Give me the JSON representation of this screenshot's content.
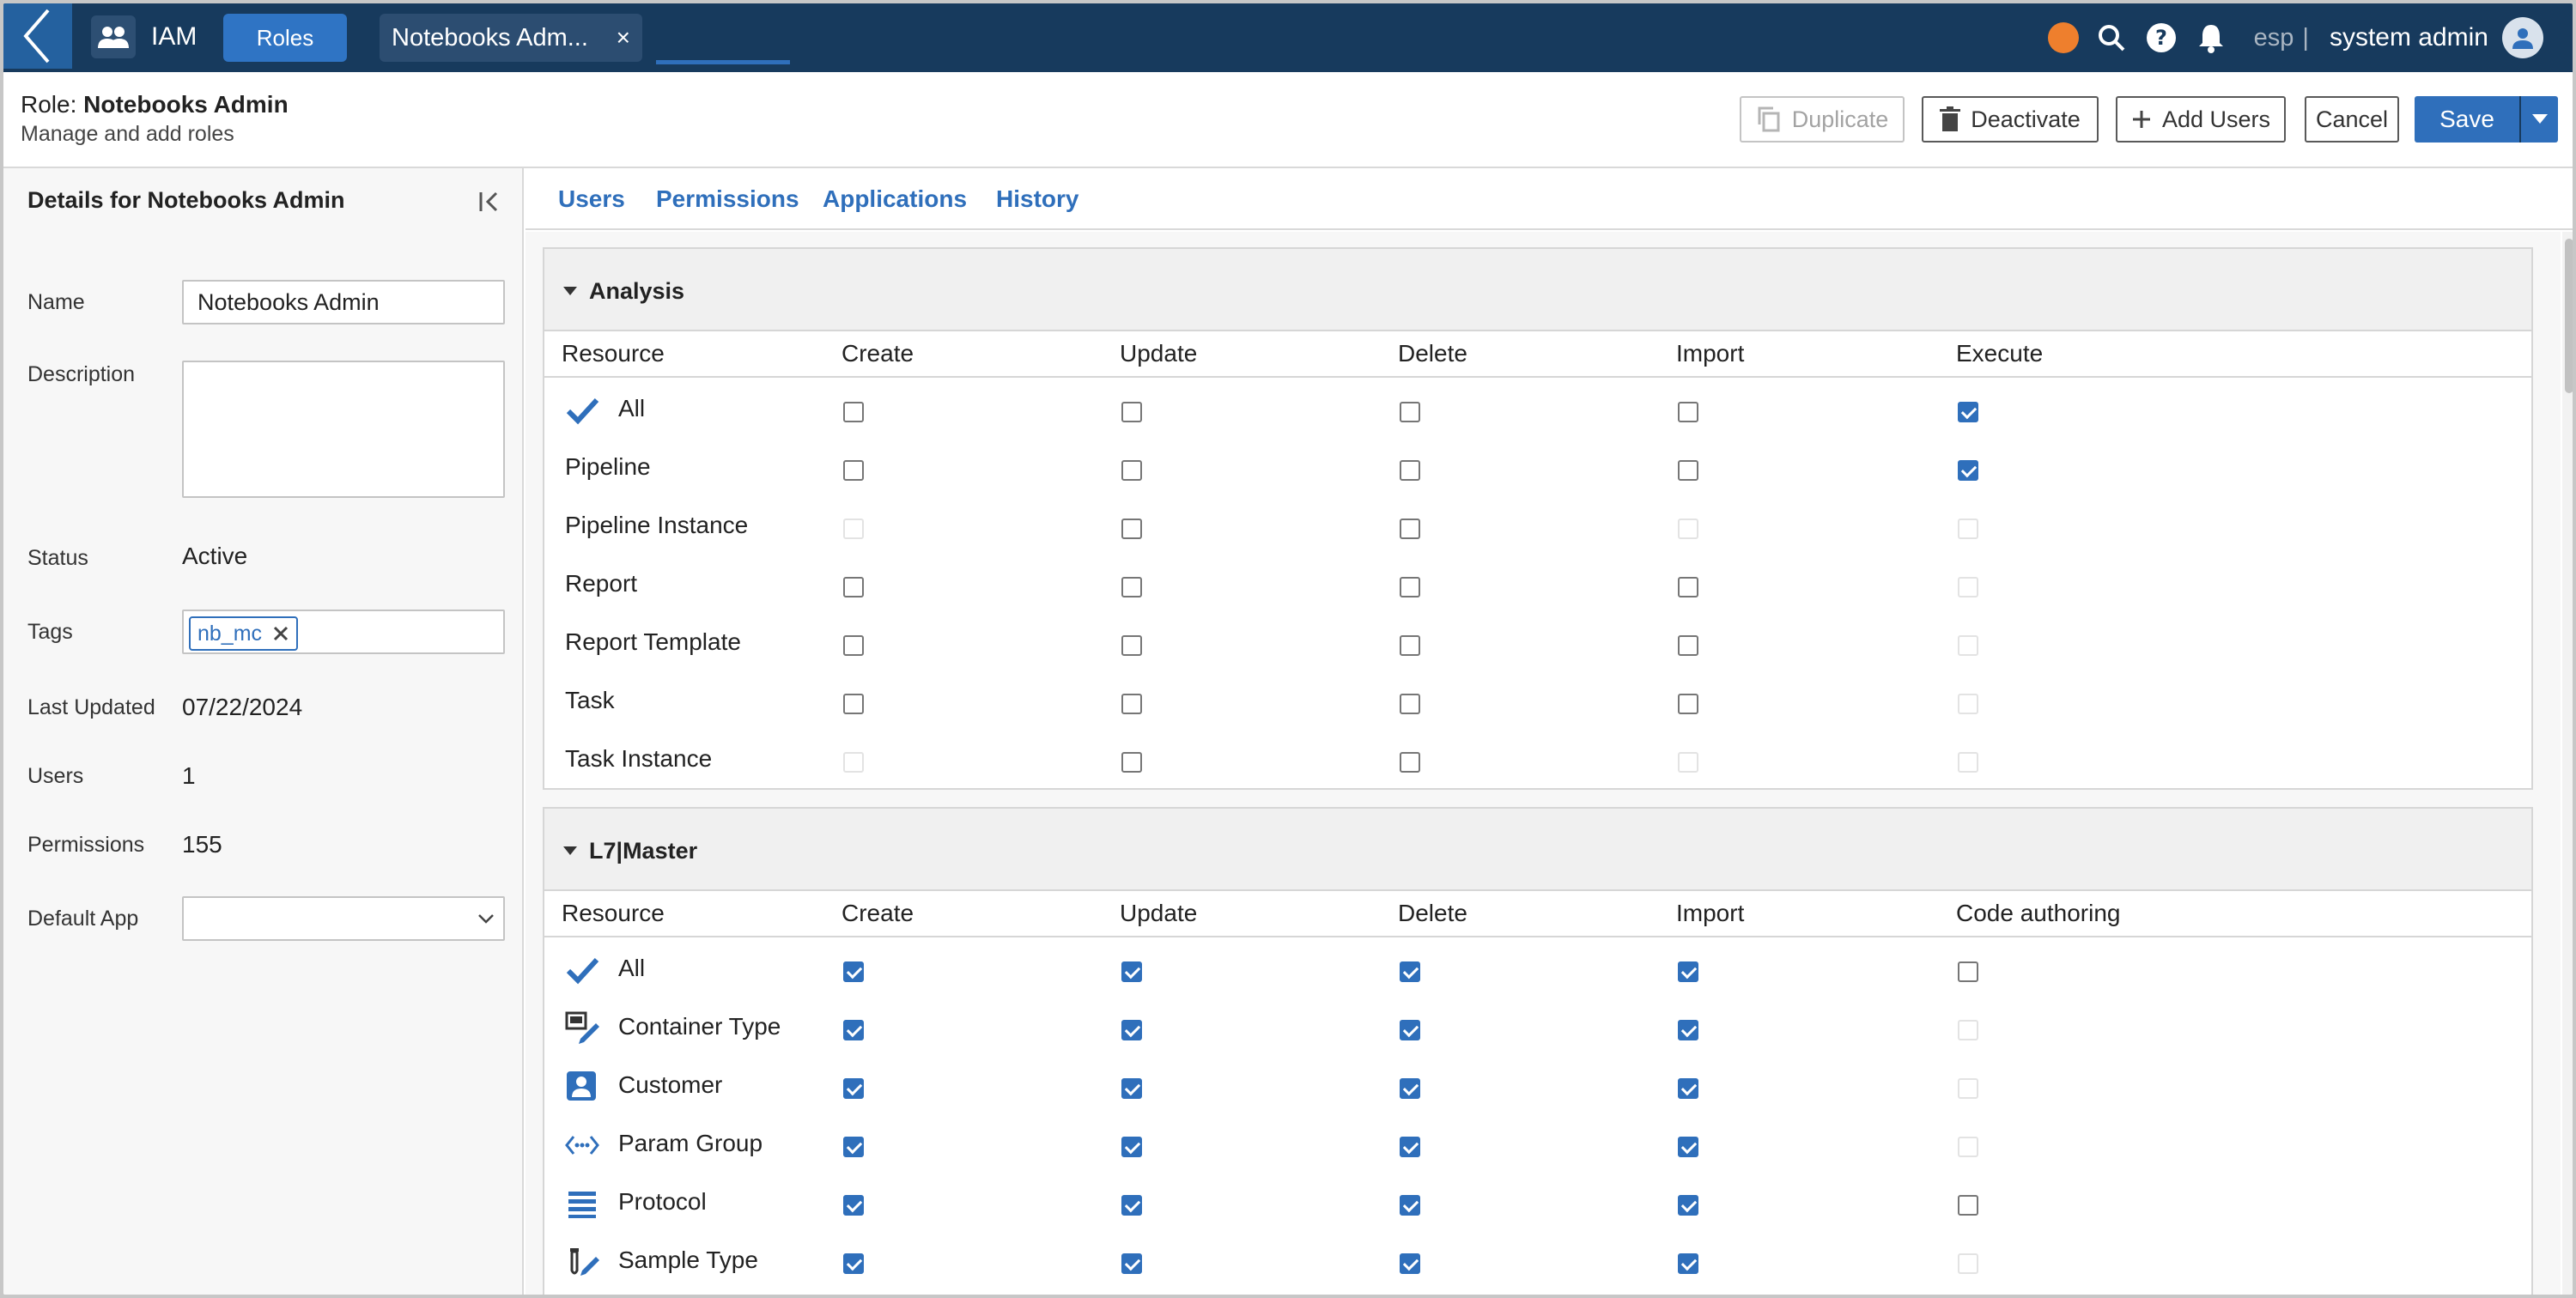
{
  "topbar": {
    "app_label": "IAM",
    "roles_label": "Roles",
    "tab_label": "Notebooks Adm...",
    "tab_close": "×",
    "lang": "esp",
    "sep": "|",
    "user": "system admin"
  },
  "header": {
    "title_prefix": "Role:",
    "title_name": "Notebooks Admin",
    "subtitle": "Manage and add roles",
    "duplicate_label": "Duplicate",
    "deactivate_label": "Deactivate",
    "add_users_label": "Add Users",
    "cancel_label": "Cancel",
    "save_label": "Save"
  },
  "details": {
    "title": "Details for Notebooks Admin",
    "name_label": "Name",
    "name_value": "Notebooks Admin",
    "description_label": "Description",
    "description_value": "",
    "status_label": "Status",
    "status_value": "Active",
    "tags_label": "Tags",
    "tag": "nb_mc",
    "last_updated_label": "Last Updated",
    "last_updated_value": "07/22/2024",
    "users_label": "Users",
    "users_value": "1",
    "permissions_label": "Permissions",
    "permissions_value": "155",
    "default_app_label": "Default App",
    "default_app_value": ""
  },
  "tabs": [
    "Users",
    "Permissions",
    "Applications",
    "History"
  ],
  "active_tab": "Permissions",
  "sections": [
    {
      "title": "Analysis",
      "columns": [
        "Resource",
        "Create",
        "Update",
        "Delete",
        "Import",
        "Execute"
      ],
      "rows": [
        {
          "label": "All",
          "icon": "checkmark-icon",
          "states": [
            "off",
            "off",
            "off",
            "off",
            "on"
          ]
        },
        {
          "label": "Pipeline",
          "icon": "",
          "states": [
            "off",
            "off",
            "off",
            "off",
            "on"
          ]
        },
        {
          "label": "Pipeline Instance",
          "icon": "",
          "states": [
            "disabled",
            "off",
            "off",
            "disabled",
            "disabled"
          ]
        },
        {
          "label": "Report",
          "icon": "",
          "states": [
            "off",
            "off",
            "off",
            "off",
            "disabled"
          ]
        },
        {
          "label": "Report Template",
          "icon": "",
          "states": [
            "off",
            "off",
            "off",
            "off",
            "disabled"
          ]
        },
        {
          "label": "Task",
          "icon": "",
          "states": [
            "off",
            "off",
            "off",
            "off",
            "disabled"
          ]
        },
        {
          "label": "Task Instance",
          "icon": "",
          "states": [
            "disabled",
            "off",
            "off",
            "disabled",
            "disabled"
          ]
        }
      ]
    },
    {
      "title": "L7|Master",
      "columns": [
        "Resource",
        "Create",
        "Update",
        "Delete",
        "Import",
        "Code authoring"
      ],
      "rows": [
        {
          "label": "All",
          "icon": "checkmark-icon",
          "states": [
            "on",
            "on",
            "on",
            "on",
            "off"
          ]
        },
        {
          "label": "Container Type",
          "icon": "container-type-icon",
          "states": [
            "on",
            "on",
            "on",
            "on",
            "disabled"
          ]
        },
        {
          "label": "Customer",
          "icon": "customer-icon",
          "states": [
            "on",
            "on",
            "on",
            "on",
            "disabled"
          ]
        },
        {
          "label": "Param Group",
          "icon": "param-group-icon",
          "states": [
            "on",
            "on",
            "on",
            "on",
            "disabled"
          ]
        },
        {
          "label": "Protocol",
          "icon": "protocol-icon",
          "states": [
            "on",
            "on",
            "on",
            "on",
            "off"
          ]
        },
        {
          "label": "Sample Type",
          "icon": "sample-type-icon",
          "states": [
            "on",
            "on",
            "on",
            "on",
            "disabled"
          ]
        }
      ]
    }
  ],
  "colors": {
    "topbar_bg": "#173a5d",
    "accent": "#2f6fbb",
    "status_dot": "#ee7f2d"
  }
}
